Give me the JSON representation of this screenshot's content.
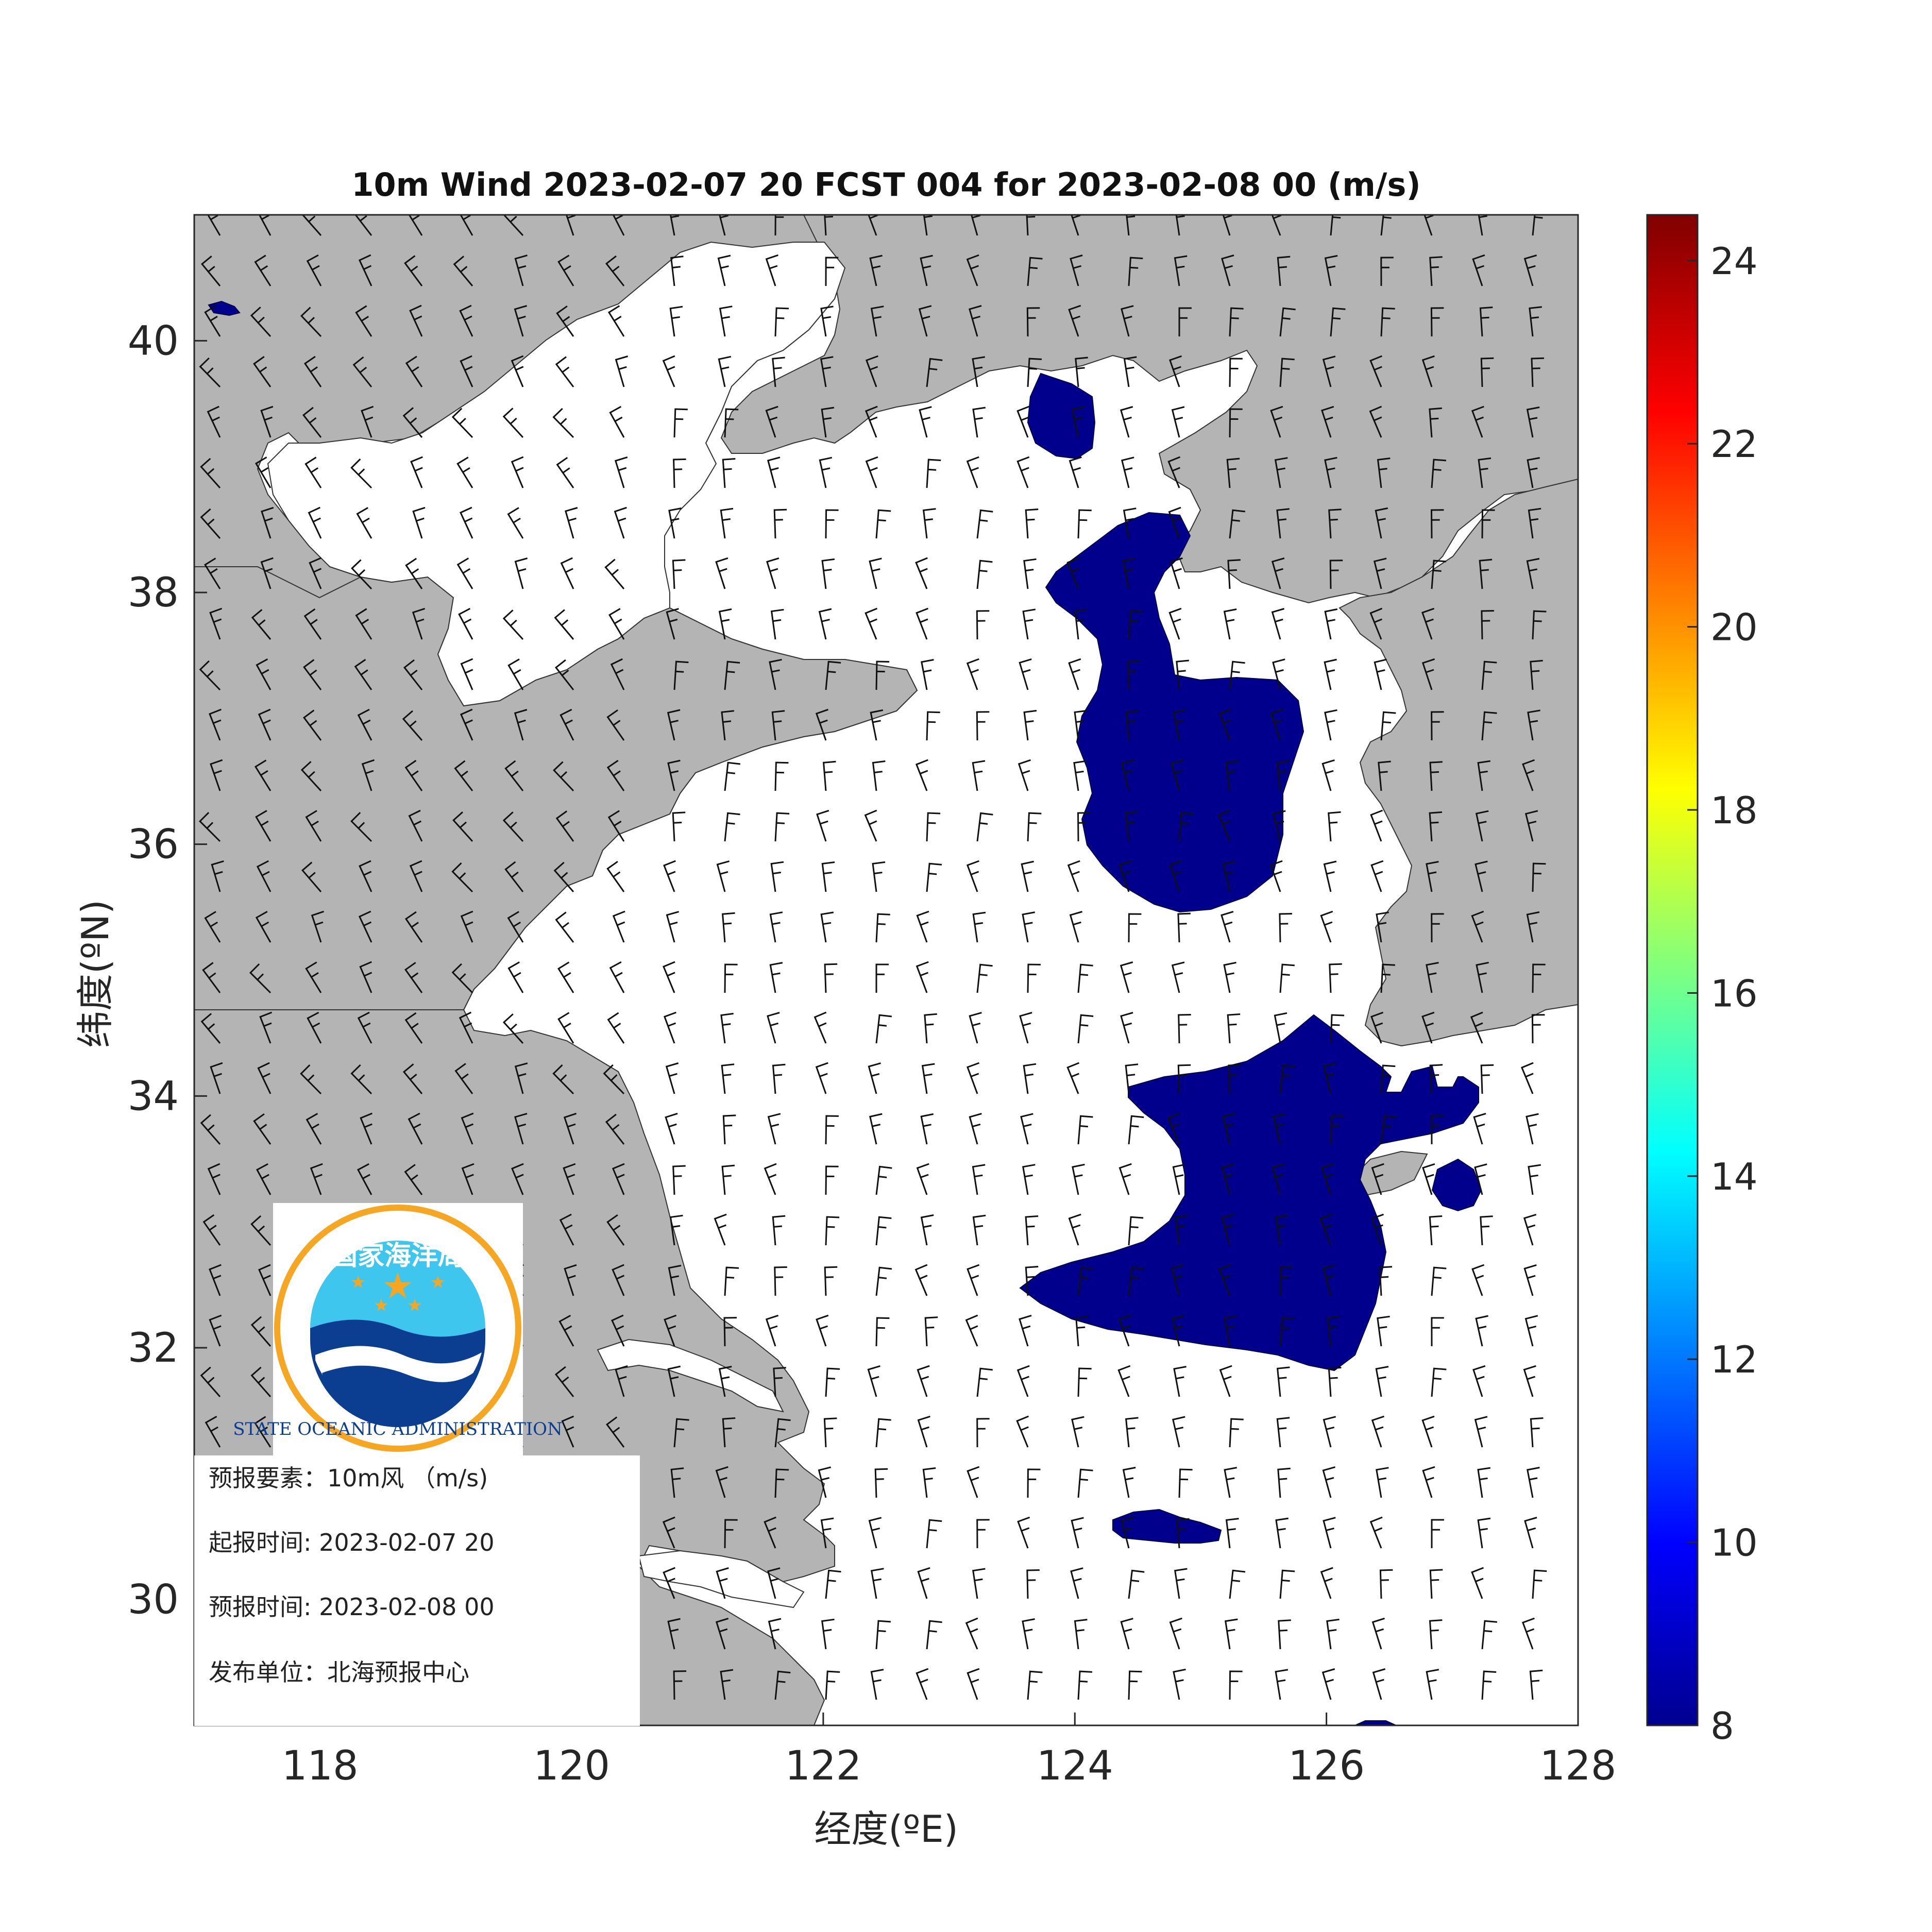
{
  "title": "10m Wind 2023-02-07 20 FCST 004 for 2023-02-08 00 (m/s)",
  "x_axis": {
    "label": "经度(ºE)",
    "ticks": [
      "118",
      "120",
      "122",
      "124",
      "126",
      "128"
    ],
    "range": [
      117,
      128
    ]
  },
  "y_axis": {
    "label": "纬度(ºN)",
    "ticks": [
      "30",
      "32",
      "34",
      "36",
      "38",
      "40"
    ],
    "range": [
      29,
      41
    ]
  },
  "colorbar": {
    "ticks": [
      "8",
      "10",
      "12",
      "14",
      "16",
      "18",
      "20",
      "22",
      "24"
    ],
    "range": [
      8,
      24.5
    ],
    "colormap": "jet",
    "stops": [
      "#00008f",
      "#0000ff",
      "#00ffff",
      "#ffff00",
      "#ff0000",
      "#800000"
    ]
  },
  "info": {
    "element": "预报要素：10m风 （m/s)",
    "issue_time": "起报时间: 2023-02-07 20",
    "valid_time": "预报时间: 2023-02-08 00",
    "publisher": "发布单位：北海预报中心"
  },
  "logo": {
    "cn": "国家海洋局",
    "en": "STATE OCEANIC ADMINISTRATION"
  },
  "colors": {
    "land": "#b4b4b4",
    "sea": "#ffffff",
    "high_wind": "#00008c"
  }
}
